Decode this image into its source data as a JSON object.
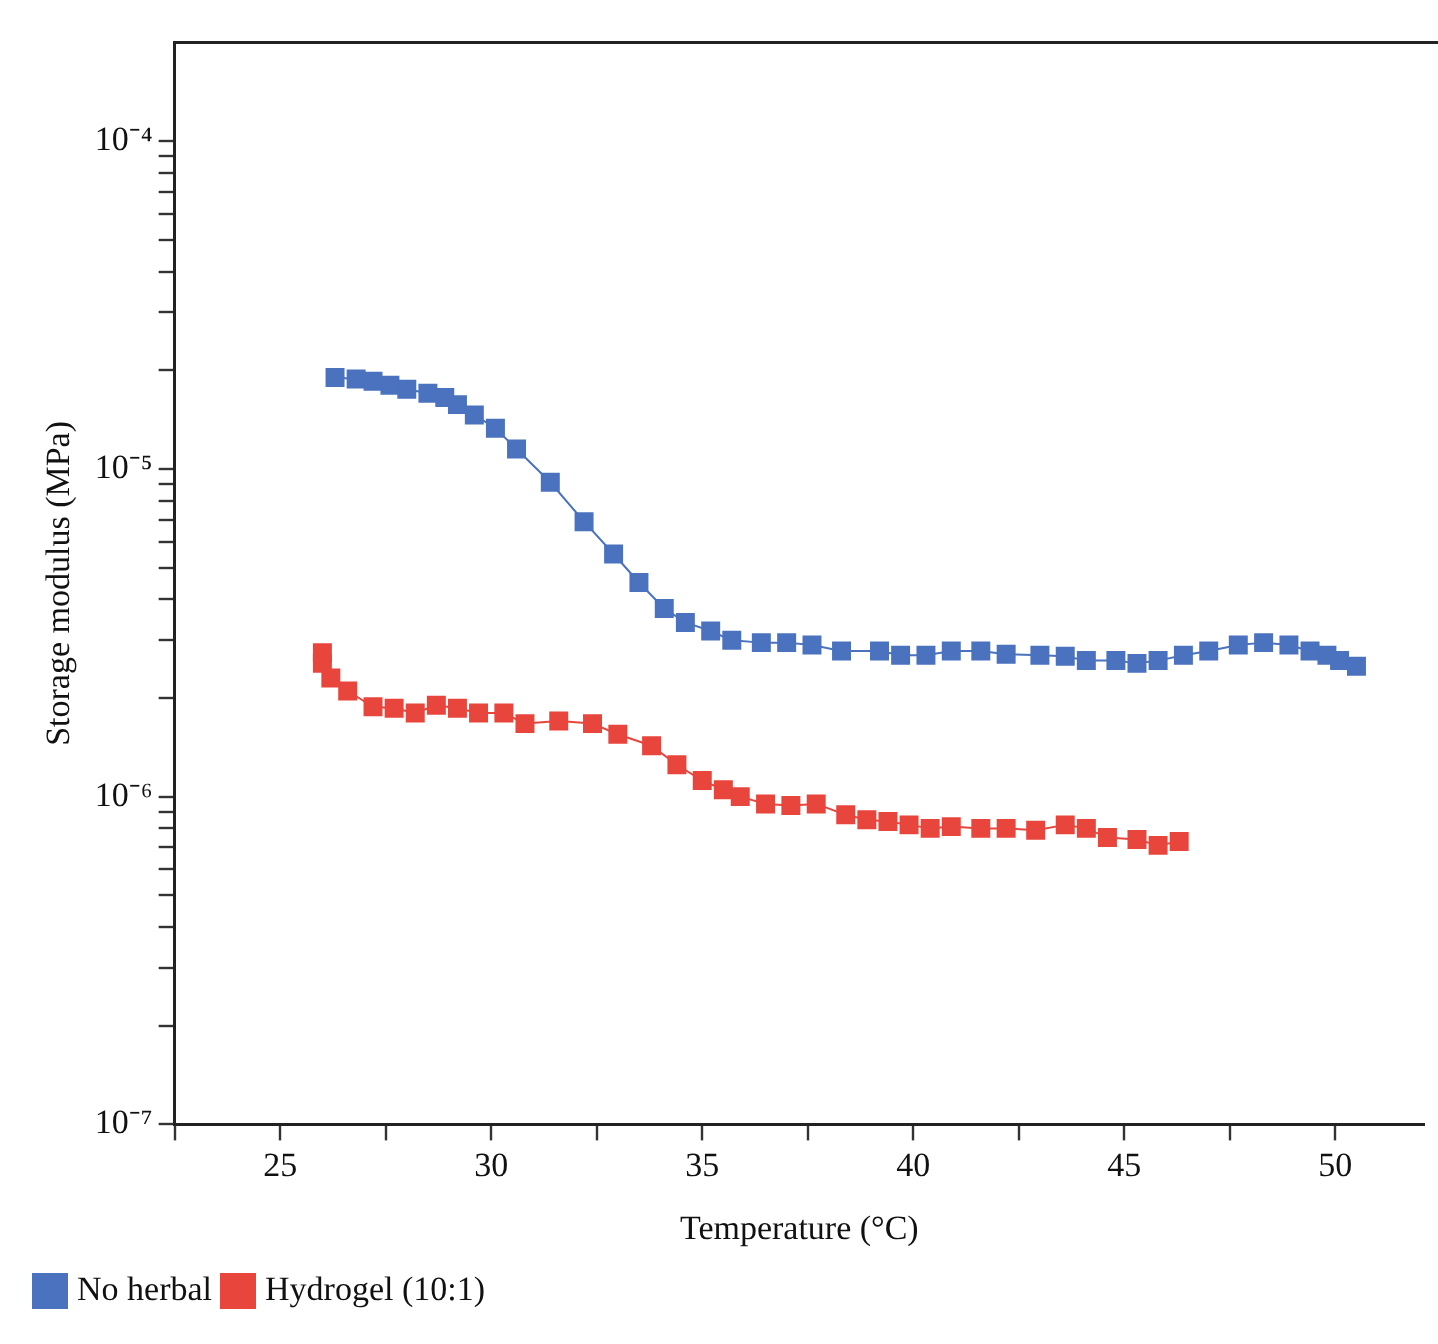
{
  "chart_data": {
    "type": "line",
    "xlabel": "Temperature (°C)",
    "ylabel": "Storage modulus (MPa)",
    "log": "y",
    "grid": false,
    "legend": "bottom left",
    "marker": "square",
    "line_style": "solid",
    "xlim": [
      22.5,
      52.1
    ],
    "xticks": [
      {
        "value": 22.5,
        "label": null
      },
      25,
      {
        "value": 27.5,
        "label": null
      },
      30,
      {
        "value": 32.5,
        "label": null
      },
      35,
      {
        "value": 37.5,
        "label": null
      },
      40,
      {
        "value": 42.5,
        "label": null
      },
      45,
      {
        "value": 47.5,
        "label": null
      },
      50
    ],
    "ylim": [
      1e-07,
      0.0002
    ],
    "yticks": [
      {
        "value": 1e-07,
        "label": "10⁻⁷"
      },
      {
        "value": 2e-07,
        "label": null
      },
      {
        "value": 3e-07,
        "label": null
      },
      {
        "value": 4e-07,
        "label": null
      },
      {
        "value": 5e-07,
        "label": null
      },
      {
        "value": 6e-07,
        "label": null
      },
      {
        "value": 7e-07,
        "label": null
      },
      {
        "value": 8e-07,
        "label": null
      },
      {
        "value": 9e-07,
        "label": null
      },
      {
        "value": 1e-06,
        "label": "10⁻⁶"
      },
      {
        "value": 2e-06,
        "label": null
      },
      {
        "value": 3e-06,
        "label": null
      },
      {
        "value": 4e-06,
        "label": null
      },
      {
        "value": 5e-06,
        "label": null
      },
      {
        "value": 6e-06,
        "label": null
      },
      {
        "value": 7e-06,
        "label": null
      },
      {
        "value": 8e-06,
        "label": null
      },
      {
        "value": 9e-06,
        "label": null
      },
      {
        "value": 1e-05,
        "label": "10⁻⁵"
      },
      {
        "value": 2e-05,
        "label": null
      },
      {
        "value": 3e-05,
        "label": null
      },
      {
        "value": 4e-05,
        "label": null
      },
      {
        "value": 5e-05,
        "label": null
      },
      {
        "value": 6e-05,
        "label": null
      },
      {
        "value": 7e-05,
        "label": null
      },
      {
        "value": 8e-05,
        "label": null
      },
      {
        "value": 9e-05,
        "label": null
      },
      {
        "value": 0.0001,
        "label": "10⁻⁴"
      }
    ],
    "series": [
      {
        "name": "No herbal",
        "color": "#4a72be",
        "x": [
          26.3,
          26.8,
          27.2,
          27.6,
          28.0,
          28.5,
          28.9,
          29.2,
          29.6,
          30.1,
          30.6,
          31.4,
          32.2,
          32.9,
          33.5,
          34.1,
          34.6,
          35.2,
          35.7,
          36.4,
          37.0,
          37.6,
          38.3,
          39.2,
          39.7,
          40.3,
          40.9,
          41.6,
          42.2,
          43.0,
          43.6,
          44.1,
          44.8,
          45.3,
          45.8,
          46.4,
          47.0,
          47.7,
          48.3,
          48.9,
          49.4,
          49.8,
          50.1,
          50.5
        ],
        "values": [
          1.9e-05,
          1.88e-05,
          1.85e-05,
          1.8e-05,
          1.75e-05,
          1.7e-05,
          1.65e-05,
          1.57e-05,
          1.46e-05,
          1.33e-05,
          1.15e-05,
          9.1e-06,
          6.9e-06,
          5.5e-06,
          4.5e-06,
          3.75e-06,
          3.4e-06,
          3.2e-06,
          3e-06,
          2.95e-06,
          2.95e-06,
          2.9e-06,
          2.78e-06,
          2.78e-06,
          2.7e-06,
          2.7e-06,
          2.78e-06,
          2.78e-06,
          2.72e-06,
          2.7e-06,
          2.68e-06,
          2.6e-06,
          2.6e-06,
          2.55e-06,
          2.6e-06,
          2.7e-06,
          2.78e-06,
          2.9e-06,
          2.95e-06,
          2.9e-06,
          2.78e-06,
          2.7e-06,
          2.6e-06,
          2.5e-06
        ]
      },
      {
        "name": "Hydrogel (10:1)",
        "color": "#e8453c",
        "x": [
          26.0,
          26.0,
          26.2,
          26.6,
          27.2,
          27.7,
          28.2,
          28.7,
          29.2,
          29.7,
          30.3,
          30.8,
          31.6,
          32.4,
          33.0,
          33.8,
          34.4,
          35.0,
          35.5,
          35.9,
          36.5,
          37.1,
          37.7,
          38.4,
          38.9,
          39.4,
          39.9,
          40.4,
          40.9,
          41.6,
          42.2,
          42.9,
          43.6,
          44.1,
          44.6,
          45.3,
          45.8,
          46.3
        ],
        "values": [
          2.75e-06,
          2.55e-06,
          2.3e-06,
          2.1e-06,
          1.88e-06,
          1.86e-06,
          1.8e-06,
          1.9e-06,
          1.86e-06,
          1.8e-06,
          1.8e-06,
          1.67e-06,
          1.7e-06,
          1.67e-06,
          1.55e-06,
          1.43e-06,
          1.25e-06,
          1.12e-06,
          1.05e-06,
          1e-06,
          9.5e-07,
          9.4e-07,
          9.5e-07,
          8.8e-07,
          8.5e-07,
          8.4e-07,
          8.2e-07,
          8e-07,
          8.1e-07,
          8e-07,
          8e-07,
          7.9e-07,
          8.2e-07,
          8e-07,
          7.5e-07,
          7.4e-07,
          7.1e-07,
          7.3e-07
        ]
      }
    ]
  }
}
